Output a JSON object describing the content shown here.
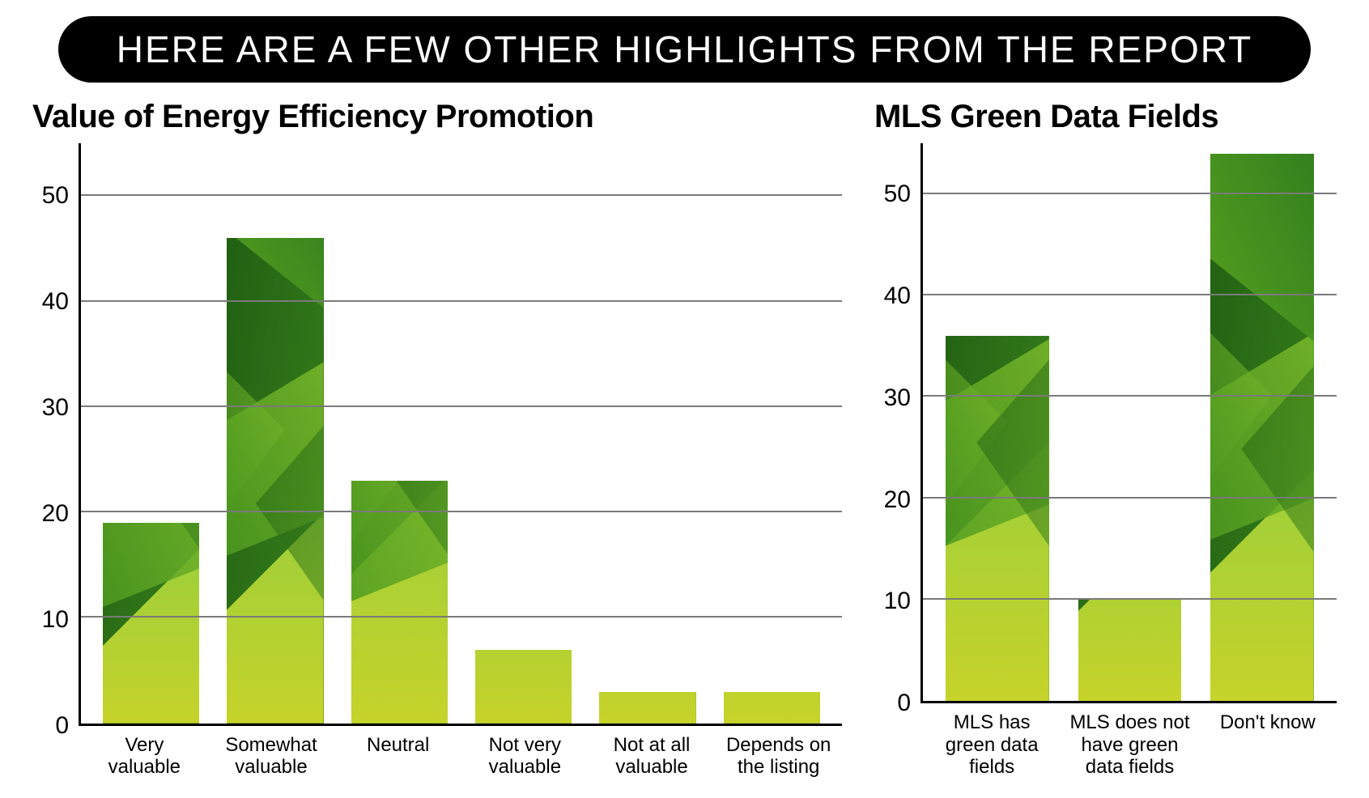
{
  "banner_text": "HERE ARE A FEW OTHER HIGHLIGHTS FROM THE REPORT",
  "banner_bg": "#000000",
  "banner_color": "#ffffff",
  "page_bg": "#ffffff",
  "grid_color": "#7a7a7a",
  "axis_color": "#000000",
  "label_color": "#000000",
  "value_font": "Georgia, 'Times New Roman', serif",
  "title_fontsize": 40,
  "ytick_fontsize": 30,
  "xlabel_fontsize": 24,
  "value_num_fontsize": 44,
  "value_pct_fontsize": 18,
  "left_chart": {
    "type": "bar",
    "title": "Value of Energy Efficiency Promotion",
    "ylim": [
      0,
      55
    ],
    "yticks": [
      0,
      10,
      20,
      30,
      40,
      50
    ],
    "grid_at": [
      10,
      20,
      30,
      40,
      50
    ],
    "bar_width_pct": 78,
    "categories": [
      "Very\nvaluable",
      "Somewhat\nvaluable",
      "Neutral",
      "Not very\nvaluable",
      "Not at all\nvaluable",
      "Depends on\nthe listing"
    ],
    "values": [
      19,
      46,
      23,
      7,
      3,
      3
    ],
    "value_suffix": "%",
    "bar_base_colors": [
      "#2e7d1f",
      "#1f5d12",
      "#5aa51f",
      "#7ab82a",
      "#8bc540",
      "#8bc540"
    ]
  },
  "right_chart": {
    "type": "bar",
    "title": "MLS Green Data Fields",
    "ylim": [
      0,
      55
    ],
    "yticks": [
      0,
      10,
      20,
      30,
      40,
      50
    ],
    "grid_at": [
      10,
      20,
      30,
      40,
      50
    ],
    "bar_width_pct": 78,
    "categories": [
      "MLS has\ngreen data\nfields",
      "MLS does not\nhave green\ndata fields",
      "Don't know"
    ],
    "values": [
      36,
      10,
      54
    ],
    "value_suffix": "%",
    "bar_base_colors": [
      "#6fae2e",
      "#6fae2e",
      "#3f8b1f"
    ]
  },
  "green_palette": {
    "dark": "#1f5d12",
    "mid_dark": "#2e7d1f",
    "mid": "#4e9b20",
    "light": "#7ab82a",
    "lighter": "#9ccf3a",
    "yellowish": "#c6d32a"
  }
}
